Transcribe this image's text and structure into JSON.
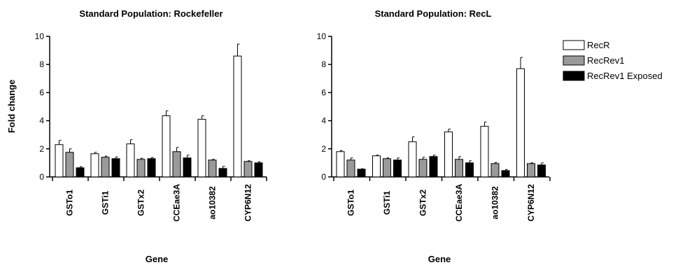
{
  "ylabel": "Fold change",
  "legend": {
    "placement": "right",
    "entries": [
      {
        "name": "RecR",
        "color": "#ffffff"
      },
      {
        "name": "RecRev1",
        "color": "#9a9a9a"
      },
      {
        "name": "RecRev1 Exposed",
        "color": "#000000"
      }
    ]
  },
  "chart_data": [
    {
      "type": "bar",
      "title": "Standard Population: Rockefeller",
      "xlabel": "Gene",
      "ylabel": "Fold change",
      "ylim": [
        0,
        10
      ],
      "yticks": [
        0,
        2,
        4,
        6,
        8,
        10
      ],
      "categories": [
        "GSTo1",
        "GSTi1",
        "GSTx2",
        "CCEae3A",
        "ao10382",
        "CYP6N12"
      ],
      "series": [
        {
          "name": "RecR",
          "color": "#ffffff",
          "values": [
            2.3,
            1.65,
            2.35,
            4.35,
            4.1,
            8.6
          ],
          "errors": [
            0.3,
            0.1,
            0.3,
            0.35,
            0.25,
            0.85
          ]
        },
        {
          "name": "RecRev1",
          "color": "#9a9a9a",
          "values": [
            1.75,
            1.4,
            1.25,
            1.8,
            1.2,
            1.1
          ],
          "errors": [
            0.25,
            0.08,
            0.08,
            0.3,
            0.05,
            0.05
          ]
        },
        {
          "name": "RecRev1 Exposed",
          "color": "#000000",
          "values": [
            0.65,
            1.3,
            1.3,
            1.35,
            0.6,
            1.0
          ],
          "errors": [
            0.08,
            0.12,
            0.08,
            0.2,
            0.15,
            0.08
          ]
        }
      ]
    },
    {
      "type": "bar",
      "title": "Standard Population: RecL",
      "xlabel": "Gene",
      "ylabel": "",
      "ylim": [
        0,
        10
      ],
      "yticks": [
        0,
        2,
        4,
        6,
        8,
        10
      ],
      "categories": [
        "GSTo1",
        "GSTi1",
        "GSTx2",
        "CCEae3A",
        "ao10382",
        "CYP6N12"
      ],
      "series": [
        {
          "name": "RecR",
          "color": "#ffffff",
          "values": [
            1.8,
            1.5,
            2.5,
            3.2,
            3.6,
            7.7
          ],
          "errors": [
            0.08,
            0.05,
            0.35,
            0.2,
            0.3,
            0.8
          ]
        },
        {
          "name": "RecRev1",
          "color": "#9a9a9a",
          "values": [
            1.2,
            1.3,
            1.25,
            1.25,
            0.95,
            0.95
          ],
          "errors": [
            0.15,
            0.05,
            0.15,
            0.2,
            0.08,
            0.05
          ]
        },
        {
          "name": "RecRev1 Exposed",
          "color": "#000000",
          "values": [
            0.55,
            1.2,
            1.45,
            1.0,
            0.45,
            0.85
          ],
          "errors": [
            0.03,
            0.15,
            0.1,
            0.15,
            0.08,
            0.15
          ]
        }
      ]
    }
  ]
}
